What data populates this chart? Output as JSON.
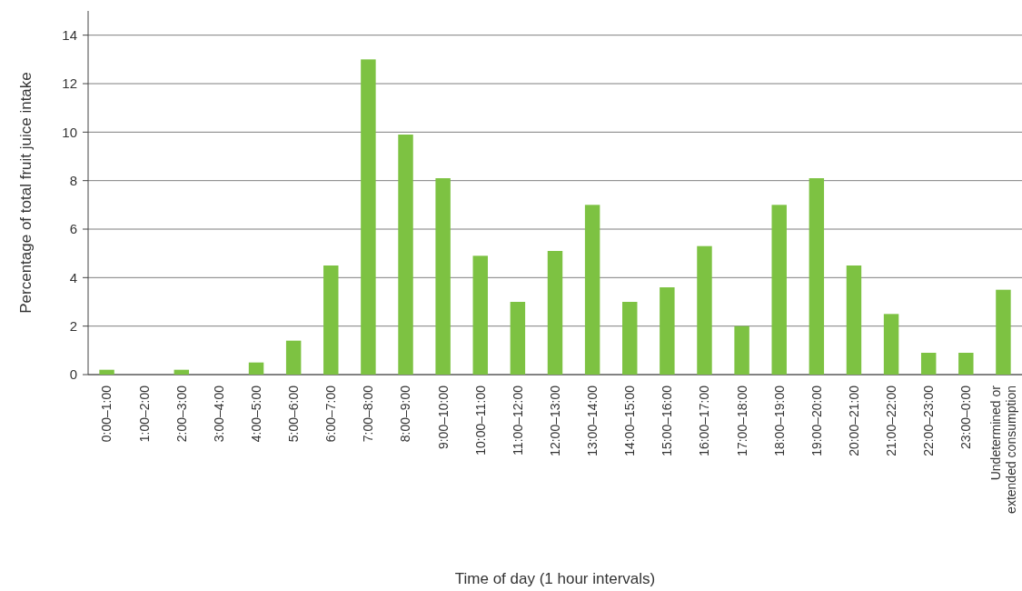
{
  "chart_data": {
    "type": "bar",
    "xlabel": "Time of day (1 hour intervals)",
    "ylabel": "Percentage of total fruit juice intake",
    "categories": [
      "0:00–1:00",
      "1:00–2:00",
      "2:00–3:00",
      "3:00–4:00",
      "4:00–5:00",
      "5:00–6:00",
      "6:00–7:00",
      "7:00–8:00",
      "8:00–9:00",
      "9:00–10:00",
      "10:00–11:00",
      "11:00–12:00",
      "12:00–13:00",
      "13:00–14:00",
      "14:00–15:00",
      "15:00–16:00",
      "16:00–17:00",
      "17:00–18:00",
      "18:00–19:00",
      "19:00–20:00",
      "20:00–21:00",
      "21:00–22:00",
      "22:00–23:00",
      "23:00–0:00",
      "Undetermined or\nextended consumption"
    ],
    "values": [
      0.2,
      0,
      0.2,
      0,
      0.5,
      1.4,
      4.5,
      13.0,
      9.9,
      8.1,
      4.9,
      3.0,
      5.1,
      7.0,
      3.0,
      3.6,
      5.3,
      2.0,
      7.0,
      8.1,
      4.5,
      2.5,
      0.9,
      0.9,
      3.5
    ],
    "color": "#7dc242",
    "ylim": [
      0,
      15
    ],
    "yticks": [
      0,
      2,
      4,
      6,
      8,
      10,
      12,
      14
    ],
    "grid": "y"
  }
}
